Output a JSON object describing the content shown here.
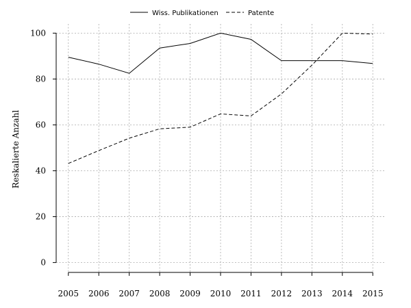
{
  "chart_data": {
    "type": "line",
    "title": "",
    "xlabel": "",
    "ylabel": "Reskalierte Anzahl",
    "x": [
      2005,
      2006,
      2007,
      2008,
      2009,
      2010,
      2011,
      2012,
      2013,
      2014,
      2015
    ],
    "x_tick_labels": [
      "2005",
      "2006",
      "2007",
      "2008",
      "2009",
      "2010",
      "2011",
      "2012",
      "2013",
      "2014",
      "2015"
    ],
    "y_ticks": [
      0,
      20,
      40,
      60,
      80,
      100
    ],
    "y_tick_labels": [
      "0",
      "20",
      "40",
      "60",
      "80",
      "100"
    ],
    "xlim": [
      2004.6,
      2015.4
    ],
    "ylim": [
      -4,
      104
    ],
    "grid": true,
    "legend_position": "top-center",
    "series": [
      {
        "name": "Wiss. Publikationen",
        "line_style": "solid",
        "values": [
          89.5,
          86.5,
          82.5,
          93.5,
          95.5,
          100,
          97.3,
          88,
          88,
          88,
          86.8
        ]
      },
      {
        "name": "Patente",
        "line_style": "dashed",
        "values": [
          43.2,
          48.8,
          54.2,
          58.3,
          59,
          64.8,
          63.9,
          73.5,
          86,
          100,
          99.6
        ]
      }
    ]
  }
}
